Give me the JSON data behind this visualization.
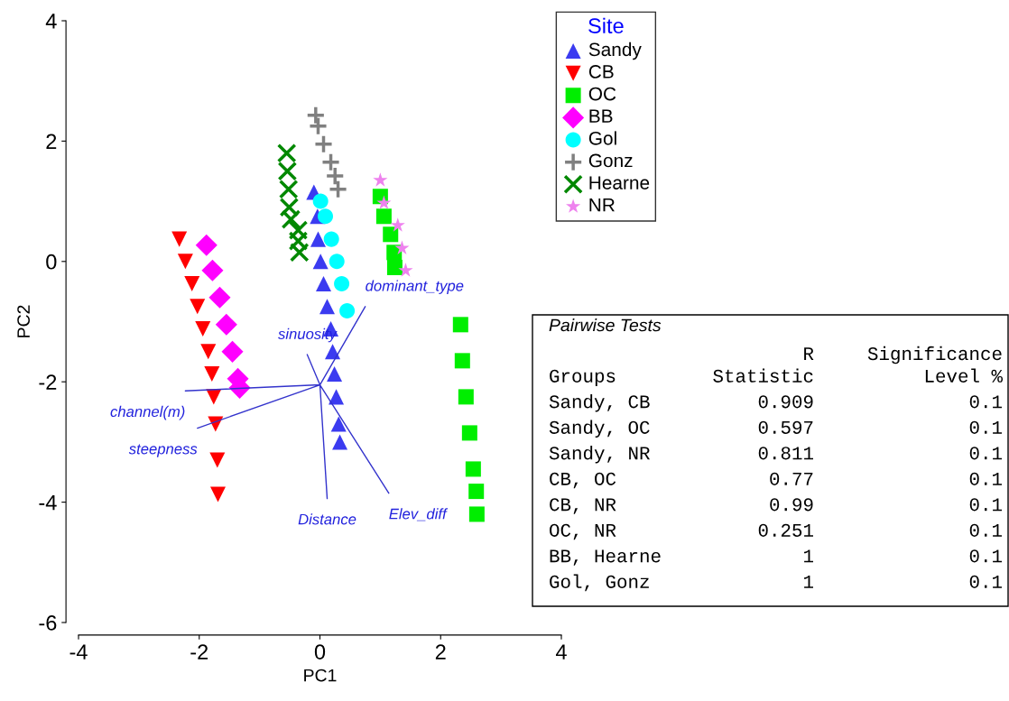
{
  "chart_data": {
    "type": "scatter",
    "xlabel": "PC1",
    "ylabel": "PC2",
    "legend_title": "Site",
    "legend": "top right",
    "grid": false,
    "xlim": [
      -4,
      4
    ],
    "xticks": [
      -4,
      -2,
      0,
      2,
      4
    ],
    "ylim": [
      -6,
      4
    ],
    "yticks": [
      -6,
      -4,
      -2,
      0,
      2,
      4
    ],
    "series": [
      {
        "name": "Sandy",
        "color": "#3b3bf0",
        "marker": "triangle",
        "x": [
          -0.1,
          -0.04,
          -0.03,
          0.01,
          0.06,
          0.12,
          0.18,
          0.21,
          0.24,
          0.27,
          0.31,
          0.33
        ],
        "values": [
          1.15,
          0.75,
          0.37,
          0.0,
          -0.37,
          -0.75,
          -1.12,
          -1.5,
          -1.87,
          -2.25,
          -2.7,
          -3.0
        ]
      },
      {
        "name": "CB",
        "color": "#ff0000",
        "marker": "triangle-down",
        "x": [
          -2.33,
          -2.23,
          -2.12,
          -2.03,
          -1.94,
          -1.85,
          -1.79,
          -1.76,
          -1.73,
          -1.7,
          -1.69
        ],
        "values": [
          0.37,
          0.0,
          -0.37,
          -0.75,
          -1.12,
          -1.5,
          -1.87,
          -2.25,
          -2.7,
          -3.3,
          -3.87
        ]
      },
      {
        "name": "OC",
        "color": "#00ee00",
        "marker": "square",
        "x": [
          1.0,
          1.06,
          1.17,
          1.23,
          1.24,
          2.33,
          2.36,
          2.42,
          2.48,
          2.54,
          2.59,
          2.6
        ],
        "values": [
          1.08,
          0.75,
          0.45,
          0.15,
          -0.1,
          -1.05,
          -1.65,
          -2.25,
          -2.85,
          -3.45,
          -3.82,
          -4.2
        ]
      },
      {
        "name": "BB",
        "color": "#ff00ff",
        "marker": "diamond",
        "x": [
          -1.88,
          -1.78,
          -1.66,
          -1.55,
          -1.45,
          -1.36,
          -1.33
        ],
        "values": [
          0.27,
          -0.15,
          -0.6,
          -1.05,
          -1.5,
          -1.95,
          -2.1
        ]
      },
      {
        "name": "Gol",
        "color": "#00ffff",
        "marker": "circle",
        "x": [
          0.01,
          0.09,
          0.19,
          0.28,
          0.36,
          0.45
        ],
        "values": [
          1.0,
          0.75,
          0.37,
          0.0,
          -0.37,
          -0.82
        ]
      },
      {
        "name": "Gonz",
        "color": "#808080",
        "marker": "plus",
        "x": [
          -0.07,
          -0.03,
          0.06,
          0.18,
          0.25,
          0.3
        ],
        "values": [
          2.43,
          2.25,
          1.95,
          1.65,
          1.42,
          1.2
        ]
      },
      {
        "name": "Hearne",
        "color": "#008800",
        "marker": "cross",
        "x": [
          -0.55,
          -0.54,
          -0.52,
          -0.51,
          -0.48,
          -0.36,
          -0.36,
          -0.34
        ],
        "values": [
          1.8,
          1.5,
          1.2,
          0.9,
          0.7,
          0.52,
          0.34,
          0.15
        ]
      },
      {
        "name": "NR",
        "color": "#ee82ee",
        "marker": "star",
        "x": [
          1.0,
          1.06,
          1.29,
          1.36,
          1.42
        ],
        "values": [
          1.35,
          0.97,
          0.6,
          0.22,
          -0.15
        ]
      },
      {
        "type": "line",
        "color": "#3333cc",
        "x": [
          -0.21,
          0,
          0.75,
          0,
          -2.23,
          0,
          -2.03,
          0,
          0.12,
          0,
          1.14
        ],
        "values": [
          -1.55,
          -2.05,
          -0.75,
          -2.05,
          -2.15,
          -2.05,
          -2.77,
          -2.05,
          -3.94,
          -2.05,
          -3.85
        ]
      }
    ],
    "annotations": [
      {
        "text": "sinuosity",
        "x": -0.21,
        "y": -1.55
      },
      {
        "text": "dominant_type",
        "x": 0.75,
        "y": -0.75
      },
      {
        "text": "channel(m)",
        "x": -2.23,
        "y": -2.15
      },
      {
        "text": "steepness",
        "x": -2.03,
        "y": -2.77
      },
      {
        "text": "Distance",
        "x": 0.12,
        "y": -3.94
      },
      {
        "text": "Elev_diff",
        "x": 1.14,
        "y": -3.85
      },
      "Pairwise Tests",
      "Groups",
      "R\nStatistic",
      "Significance\nLevel %",
      "Sandy, CB",
      "0.909",
      "0.1",
      "Sandy, OC",
      "0.597",
      "0.1",
      "Sandy, NR",
      "0.811",
      "0.1",
      "CB, OC",
      "0.77",
      "0.1",
      "CB, NR",
      "0.99",
      "0.1",
      "OC, NR",
      "0.251",
      "0.1",
      "BB, Hearne",
      "1",
      "0.1",
      "Gol, Gonz",
      "1",
      "0.1"
    ]
  }
}
